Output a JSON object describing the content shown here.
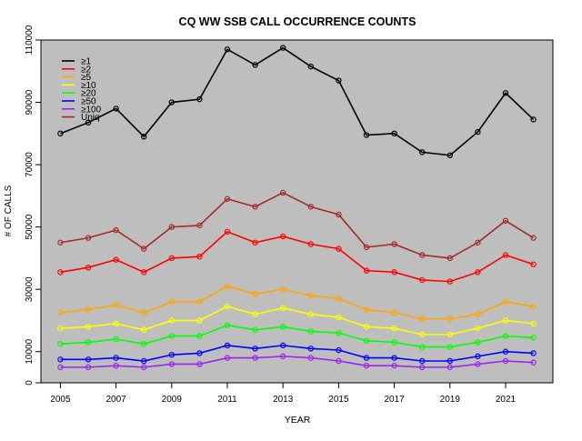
{
  "chart_data": {
    "type": "line",
    "title": "CQ WW SSB CALL OCCURRENCE COUNTS",
    "xlabel": "YEAR",
    "ylabel": "# OF CALLS",
    "x": [
      2005,
      2006,
      2007,
      2008,
      2009,
      2010,
      2011,
      2012,
      2013,
      2014,
      2015,
      2016,
      2017,
      2018,
      2019,
      2020,
      2021,
      2022
    ],
    "x_ticks": [
      "2005",
      "2007",
      "2009",
      "2011",
      "2013",
      "2015",
      "2017",
      "2019",
      "2021"
    ],
    "xlim": [
      2004.3,
      2022.7
    ],
    "ylim": [
      0,
      110000
    ],
    "y_ticks": [
      "0",
      "10000",
      "30000",
      "50000",
      "70000",
      "90000",
      "110000"
    ],
    "background": "#bebebe",
    "grid": false,
    "legend_position": "top-left",
    "series": [
      {
        "name": "≥1",
        "color": "#000000",
        "values": [
          80000,
          83500,
          88000,
          79000,
          90000,
          91000,
          107000,
          102000,
          107500,
          101500,
          97000,
          79500,
          80000,
          74000,
          73000,
          80500,
          93000,
          84500
        ]
      },
      {
        "name": "≥2",
        "color": "#ff0000",
        "values": [
          35500,
          37000,
          39500,
          35500,
          40000,
          40500,
          48500,
          45000,
          47000,
          44500,
          43000,
          36000,
          35500,
          33000,
          32500,
          35500,
          41000,
          38000
        ]
      },
      {
        "name": "≥5",
        "color": "#ffa500",
        "values": [
          22500,
          23500,
          25000,
          22500,
          26000,
          26000,
          31000,
          28500,
          30000,
          28000,
          27000,
          23500,
          22500,
          20500,
          20500,
          22000,
          26000,
          24500
        ]
      },
      {
        "name": "≥10",
        "color": "#ffff00",
        "values": [
          17500,
          18000,
          19000,
          17000,
          20000,
          20000,
          24500,
          22000,
          24000,
          22000,
          21000,
          18000,
          17500,
          15500,
          15500,
          17500,
          20000,
          19000
        ]
      },
      {
        "name": "≥20",
        "color": "#00ff00",
        "values": [
          12500,
          13000,
          14000,
          12500,
          15000,
          15000,
          18500,
          17000,
          18000,
          16500,
          16000,
          13500,
          13000,
          11500,
          11500,
          13000,
          15000,
          14500
        ]
      },
      {
        "name": "≥50",
        "color": "#0000ff",
        "values": [
          7500,
          7500,
          8000,
          7000,
          9000,
          9500,
          12000,
          11000,
          12000,
          11000,
          10500,
          8000,
          8000,
          7000,
          7000,
          8500,
          10000,
          9500
        ]
      },
      {
        "name": "≥100",
        "color": "#a020f0",
        "values": [
          5000,
          5000,
          5500,
          5000,
          6000,
          6000,
          8000,
          8000,
          8500,
          8000,
          7000,
          5500,
          5500,
          5000,
          5000,
          6000,
          7000,
          6500
        ]
      },
      {
        "name": "Uniq",
        "color": "#a52a2a",
        "values": [
          45000,
          46500,
          49000,
          43000,
          50000,
          50500,
          59000,
          56500,
          61000,
          56500,
          54000,
          43500,
          44500,
          41000,
          40000,
          45000,
          52000,
          46500
        ]
      }
    ]
  }
}
